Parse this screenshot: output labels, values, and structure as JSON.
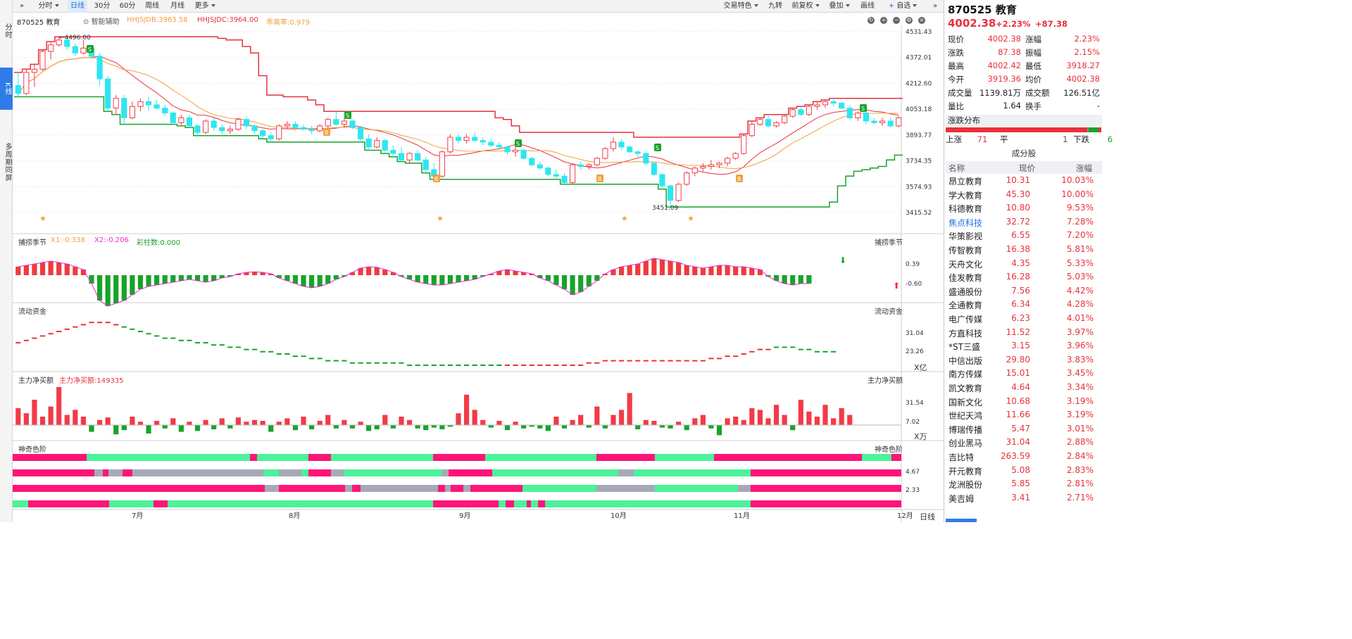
{
  "side_tabs": [
    "分时",
    "K线",
    "多周期同屏"
  ],
  "toolbar": {
    "expand": "»",
    "tabs": [
      "分时",
      "日线",
      "30分",
      "60分",
      "周线",
      "月线",
      "更多"
    ],
    "active": "日线",
    "right": [
      "交易特色",
      "九转",
      "前复权",
      "叠加",
      "画线",
      "自选"
    ]
  },
  "chart_head": {
    "code_name": "870525 教育",
    "assist": "智能辅助",
    "ind1": "HHJSJDB:3963.58",
    "ind2": "HHJSJDC:3964.00",
    "ind3": "乖离率:0.979"
  },
  "colors": {
    "up": "#f33b47",
    "down": "#2ee6f0",
    "red_line": "#e8313b",
    "green_line": "#18a32a",
    "orange": "#f2a03d",
    "magenta": "#e82cd4",
    "pink": "#ff1478",
    "mint": "#4cf29a",
    "gray": "#a7aab6"
  },
  "chart_data": {
    "type": "candlestick",
    "x_labels": [
      "7月",
      "8月",
      "9月",
      "10月",
      "11月",
      "12月"
    ],
    "price_axis": [
      "4531.43",
      "4372.01",
      "4212.60",
      "4053.18",
      "3893.77",
      "3734.35",
      "3574.93",
      "3415.52"
    ],
    "high_label": "4496.00",
    "low_label": "3451.09",
    "ohlc": [
      [
        4200,
        4280,
        4130,
        4150
      ],
      [
        4150,
        4300,
        4140,
        4280
      ],
      [
        4280,
        4330,
        4190,
        4300
      ],
      [
        4300,
        4420,
        4290,
        4410
      ],
      [
        4410,
        4470,
        4360,
        4450
      ],
      [
        4450,
        4500,
        4440,
        4480
      ],
      [
        4480,
        4490,
        4420,
        4440
      ],
      [
        4440,
        4460,
        4380,
        4400
      ],
      [
        4400,
        4480,
        4390,
        4430
      ],
      [
        4430,
        4440,
        4360,
        4380
      ],
      [
        4380,
        4400,
        4200,
        4240
      ],
      [
        4240,
        4260,
        4040,
        4060
      ],
      [
        4060,
        4140,
        4020,
        4120
      ],
      [
        4120,
        4140,
        3960,
        4000
      ],
      [
        4000,
        4100,
        3990,
        4070
      ],
      [
        4070,
        4120,
        4040,
        4100
      ],
      [
        4100,
        4130,
        4040,
        4080
      ],
      [
        4080,
        4110,
        4050,
        4060
      ],
      [
        4060,
        4080,
        4010,
        4030
      ],
      [
        4030,
        4040,
        3960,
        3970
      ],
      [
        3970,
        4020,
        3950,
        4000
      ],
      [
        4000,
        4020,
        3940,
        3950
      ],
      [
        3950,
        3960,
        3890,
        3910
      ],
      [
        3910,
        3990,
        3900,
        3980
      ],
      [
        3980,
        4000,
        3920,
        3940
      ],
      [
        3940,
        3960,
        3900,
        3920
      ],
      [
        3920,
        3950,
        3900,
        3930
      ],
      [
        3930,
        4000,
        3920,
        3990
      ],
      [
        3990,
        4010,
        3930,
        3950
      ],
      [
        3950,
        3960,
        3900,
        3920
      ],
      [
        3920,
        3930,
        3870,
        3890
      ],
      [
        3890,
        3910,
        3850,
        3870
      ],
      [
        3870,
        3960,
        3860,
        3950
      ],
      [
        3950,
        3980,
        3930,
        3960
      ],
      [
        3960,
        3980,
        3920,
        3940
      ],
      [
        3940,
        3960,
        3920,
        3930
      ],
      [
        3930,
        3950,
        3900,
        3920
      ],
      [
        3920,
        3960,
        3910,
        3950
      ],
      [
        3950,
        4000,
        3930,
        3990
      ],
      [
        3990,
        4040,
        3950,
        3960
      ],
      [
        3960,
        4000,
        3940,
        3980
      ],
      [
        3980,
        3990,
        3930,
        3940
      ],
      [
        3940,
        3950,
        3850,
        3870
      ],
      [
        3870,
        3900,
        3800,
        3820
      ],
      [
        3820,
        3880,
        3810,
        3860
      ],
      [
        3860,
        3870,
        3780,
        3800
      ],
      [
        3800,
        3830,
        3760,
        3780
      ],
      [
        3780,
        3820,
        3730,
        3740
      ],
      [
        3740,
        3790,
        3720,
        3780
      ],
      [
        3780,
        3800,
        3730,
        3740
      ],
      [
        3740,
        3760,
        3660,
        3680
      ],
      [
        3680,
        3720,
        3620,
        3640
      ],
      [
        3640,
        3800,
        3630,
        3790
      ],
      [
        3790,
        3900,
        3780,
        3880
      ],
      [
        3880,
        3900,
        3840,
        3860
      ],
      [
        3860,
        3900,
        3840,
        3880
      ],
      [
        3880,
        3910,
        3850,
        3860
      ],
      [
        3860,
        3880,
        3830,
        3850
      ],
      [
        3850,
        3870,
        3820,
        3830
      ],
      [
        3830,
        3850,
        3800,
        3820
      ],
      [
        3820,
        3830,
        3770,
        3790
      ],
      [
        3790,
        3820,
        3760,
        3800
      ],
      [
        3800,
        3810,
        3740,
        3750
      ],
      [
        3750,
        3760,
        3700,
        3710
      ],
      [
        3710,
        3730,
        3680,
        3690
      ],
      [
        3690,
        3700,
        3640,
        3650
      ],
      [
        3650,
        3680,
        3620,
        3640
      ],
      [
        3640,
        3660,
        3590,
        3600
      ],
      [
        3600,
        3720,
        3590,
        3710
      ],
      [
        3710,
        3730,
        3680,
        3700
      ],
      [
        3700,
        3720,
        3680,
        3710
      ],
      [
        3710,
        3760,
        3700,
        3750
      ],
      [
        3750,
        3820,
        3740,
        3810
      ],
      [
        3810,
        3880,
        3790,
        3850
      ],
      [
        3850,
        3870,
        3800,
        3820
      ],
      [
        3820,
        3830,
        3780,
        3790
      ],
      [
        3790,
        3800,
        3760,
        3780
      ],
      [
        3780,
        3790,
        3710,
        3720
      ],
      [
        3720,
        3730,
        3640,
        3650
      ],
      [
        3650,
        3660,
        3560,
        3580
      ],
      [
        3580,
        3590,
        3450,
        3490
      ],
      [
        3490,
        3600,
        3480,
        3590
      ],
      [
        3590,
        3670,
        3580,
        3660
      ],
      [
        3660,
        3700,
        3640,
        3690
      ],
      [
        3690,
        3720,
        3670,
        3700
      ],
      [
        3700,
        3740,
        3680,
        3710
      ],
      [
        3710,
        3730,
        3690,
        3720
      ],
      [
        3720,
        3760,
        3700,
        3750
      ],
      [
        3750,
        3790,
        3740,
        3780
      ],
      [
        3780,
        3900,
        3770,
        3890
      ],
      [
        3890,
        3980,
        3880,
        3960
      ],
      [
        3960,
        4000,
        3950,
        3990
      ],
      [
        3990,
        4020,
        3940,
        3950
      ],
      [
        3950,
        3980,
        3940,
        3970
      ],
      [
        3970,
        4020,
        3960,
        4010
      ],
      [
        4010,
        4060,
        4000,
        4050
      ],
      [
        4050,
        4070,
        4010,
        4020
      ],
      [
        4020,
        4080,
        4010,
        4070
      ],
      [
        4070,
        4100,
        4050,
        4080
      ],
      [
        4080,
        4110,
        4060,
        4100
      ],
      [
        4100,
        4120,
        4070,
        4090
      ],
      [
        4090,
        4100,
        4050,
        4060
      ],
      [
        4060,
        4080,
        3990,
        4000
      ],
      [
        4000,
        4040,
        3980,
        4030
      ],
      [
        4030,
        4050,
        3960,
        3980
      ],
      [
        3980,
        4000,
        3960,
        3970
      ],
      [
        3970,
        4000,
        3950,
        3980
      ],
      [
        3980,
        4000,
        3940,
        3950
      ],
      [
        3950,
        4010,
        3940,
        4000
      ]
    ],
    "mid_axis": [
      "0.39",
      "-0.60"
    ],
    "mid_values": [
      0.3,
      0.35,
      0.4,
      0.45,
      0.5,
      0.45,
      0.4,
      0.3,
      0.2,
      -0.3,
      -0.9,
      -1.1,
      -1.0,
      -0.9,
      -0.7,
      -0.5,
      -0.4,
      -0.35,
      -0.3,
      -0.25,
      -0.2,
      -0.15,
      -0.2,
      -0.25,
      -0.2,
      -0.1,
      -0.05,
      0.05,
      0.1,
      0.12,
      0.1,
      0.05,
      -0.1,
      -0.2,
      -0.3,
      -0.4,
      -0.45,
      -0.4,
      -0.3,
      -0.15,
      -0.05,
      0.1,
      0.25,
      0.3,
      0.28,
      0.2,
      0.1,
      -0.05,
      -0.15,
      -0.25,
      -0.3,
      -0.35,
      -0.35,
      -0.3,
      -0.25,
      -0.2,
      -0.15,
      -0.05,
      0.05,
      0.15,
      0.2,
      0.15,
      0.1,
      0.05,
      -0.1,
      -0.2,
      -0.35,
      -0.5,
      -0.7,
      -0.6,
      -0.4,
      -0.2,
      0.05,
      0.2,
      0.3,
      0.35,
      0.4,
      0.5,
      0.6,
      0.55,
      0.5,
      0.45,
      0.35,
      0.3,
      0.25,
      0.3,
      0.35,
      0.35,
      0.3,
      0.3,
      0.25,
      0.2,
      -0.05,
      -0.2,
      -0.3,
      -0.35,
      -0.3,
      -0.3
    ],
    "fund_axis": [
      "31.04",
      "23.26"
    ],
    "fund_values": [
      28,
      29,
      30,
      31,
      32,
      33,
      34,
      35,
      36,
      37,
      37,
      37,
      36,
      35,
      34,
      33,
      32,
      31,
      30,
      30,
      29,
      29,
      28,
      28,
      27,
      27,
      26,
      26,
      25,
      25,
      24,
      24,
      23,
      23,
      22,
      22,
      21,
      21,
      20,
      20,
      20,
      19,
      19,
      19,
      19,
      19,
      19,
      19,
      18,
      18,
      18,
      18,
      18,
      18,
      18,
      18,
      18,
      18,
      18,
      18,
      18,
      18,
      18,
      18,
      18,
      18,
      18,
      18,
      18,
      18,
      19,
      19,
      20,
      20,
      20,
      20,
      20,
      20,
      20,
      20,
      20,
      20,
      20,
      20,
      20,
      21,
      21,
      22,
      22,
      23,
      24,
      25,
      25,
      26,
      26,
      26,
      25,
      25,
      24,
      24,
      24
    ],
    "net_axis": [
      "31.54",
      "7.02"
    ],
    "net_values": [
      20,
      14,
      30,
      10,
      22,
      45,
      12,
      18,
      10,
      -8,
      6,
      9,
      -11,
      -6,
      10,
      4,
      -10,
      5,
      -4,
      8,
      -8,
      4,
      -7,
      6,
      -5,
      8,
      -4,
      9,
      4,
      6,
      5,
      -8,
      4,
      8,
      -6,
      10,
      -5,
      5,
      12,
      -4,
      6,
      -4,
      4,
      -7,
      -5,
      12,
      -4,
      10,
      6,
      -4,
      -6,
      -3,
      -5,
      -2,
      14,
      36,
      18,
      6,
      -3,
      5,
      -6,
      4,
      -4,
      -2,
      -4,
      -7,
      10,
      -4,
      6,
      12,
      -3,
      22,
      -4,
      12,
      18,
      38,
      -5,
      6,
      5,
      -3,
      -4,
      4,
      -6,
      8,
      12,
      -4,
      -12,
      8,
      10,
      6,
      20,
      18,
      8,
      24,
      12,
      -6,
      30,
      16,
      10,
      24,
      8,
      20,
      12
    ],
    "band_axis": [
      "4.67",
      "2.33"
    ]
  },
  "bottom": {
    "freq": "日线"
  },
  "panels": [
    {
      "name": "捕捞季节",
      "x1": "X1:-0.338",
      "x2": "X2:-0.206",
      "cz": "彩柱数:0.000"
    },
    {
      "name": "流动资金",
      "unit": "X亿"
    },
    {
      "name": "主力净买额",
      "val": "主力净买额:149335",
      "unit": "X万"
    },
    {
      "name": "神奇色阶"
    }
  ],
  "quote": {
    "code": "870525",
    "name": "教育",
    "price": "4002.38",
    "chg_pct": "+2.23%",
    "chg": "+87.38",
    "rows": [
      [
        "现价",
        "4002.38",
        "涨幅",
        "2.23%"
      ],
      [
        "涨跌",
        "87.38",
        "振幅",
        "2.15%"
      ],
      [
        "最高",
        "4002.42",
        "最低",
        "3918.27"
      ],
      [
        "今开",
        "3919.36",
        "均价",
        "4002.38"
      ],
      [
        "成交量",
        "1139.81万",
        "成交额",
        "126.51亿"
      ],
      [
        "量比",
        "1.64",
        "换手",
        "-"
      ]
    ],
    "dist_title": "涨跌分布",
    "rise_label": "上涨",
    "rise": "71",
    "flat_label": "平",
    "flat": "1",
    "fall_label": "下跌",
    "fall": "6",
    "stocks_title": "成分股",
    "cols": [
      "名称",
      "现价",
      "涨幅"
    ],
    "stocks": [
      [
        "昂立教育",
        "10.31",
        "10.03%"
      ],
      [
        "学大教育",
        "45.30",
        "10.00%"
      ],
      [
        "科德教育",
        "10.80",
        "9.53%"
      ],
      [
        "焦点科技",
        "32.72",
        "7.28%"
      ],
      [
        "华策影视",
        "6.55",
        "7.20%"
      ],
      [
        "传智教育",
        "16.38",
        "5.81%"
      ],
      [
        "天舟文化",
        "4.35",
        "5.33%"
      ],
      [
        "佳发教育",
        "16.28",
        "5.03%"
      ],
      [
        "盛通股份",
        "7.56",
        "4.42%"
      ],
      [
        "全通教育",
        "6.34",
        "4.28%"
      ],
      [
        "电广传媒",
        "6.23",
        "4.01%"
      ],
      [
        "方直科技",
        "11.52",
        "3.97%"
      ],
      [
        "*ST三盛",
        "3.15",
        "3.96%"
      ],
      [
        "中信出版",
        "29.80",
        "3.83%"
      ],
      [
        "南方传媒",
        "15.01",
        "3.45%"
      ],
      [
        "凯文教育",
        "4.64",
        "3.34%"
      ],
      [
        "国新文化",
        "10.68",
        "3.19%"
      ],
      [
        "世纪天鸿",
        "11.66",
        "3.19%"
      ],
      [
        "博瑞传播",
        "5.47",
        "3.01%"
      ],
      [
        "创业黑马",
        "31.04",
        "2.88%"
      ],
      [
        "吉比特",
        "263.59",
        "2.84%"
      ],
      [
        "开元教育",
        "5.08",
        "2.83%"
      ],
      [
        "龙洲股份",
        "5.85",
        "2.81%"
      ],
      [
        "美吉姆",
        "3.41",
        "2.71%"
      ]
    ]
  }
}
